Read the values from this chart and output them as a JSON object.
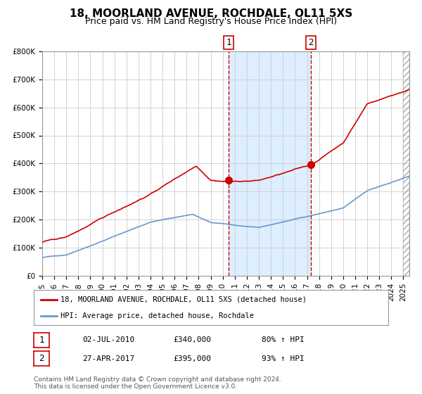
{
  "title": "18, MOORLAND AVENUE, ROCHDALE, OL11 5XS",
  "subtitle": "Price paid vs. HM Land Registry's House Price Index (HPI)",
  "legend_line1": "18, MOORLAND AVENUE, ROCHDALE, OL11 5XS (detached house)",
  "legend_line2": "HPI: Average price, detached house, Rochdale",
  "transaction1_date": "02-JUL-2010",
  "transaction1_price": 340000,
  "transaction1_label": "80% ↑ HPI",
  "transaction2_date": "27-APR-2017",
  "transaction2_price": 395000,
  "transaction2_label": "93% ↑ HPI",
  "footer": "Contains HM Land Registry data © Crown copyright and database right 2024.\nThis data is licensed under the Open Government Licence v3.0.",
  "hpi_color": "#6699cc",
  "price_color": "#cc0000",
  "marker_color": "#cc0000",
  "vline_color": "#cc0000",
  "shade_color": "#ddeeff",
  "grid_color": "#cccccc",
  "background_color": "#ffffff",
  "ylim": [
    0,
    800000
  ],
  "xlim_start": 1995.0,
  "xlim_end": 2025.5,
  "transaction1_x": 2010.5,
  "transaction2_x": 2017.33,
  "title_fontsize": 11,
  "subtitle_fontsize": 9,
  "tick_fontsize": 7.5
}
